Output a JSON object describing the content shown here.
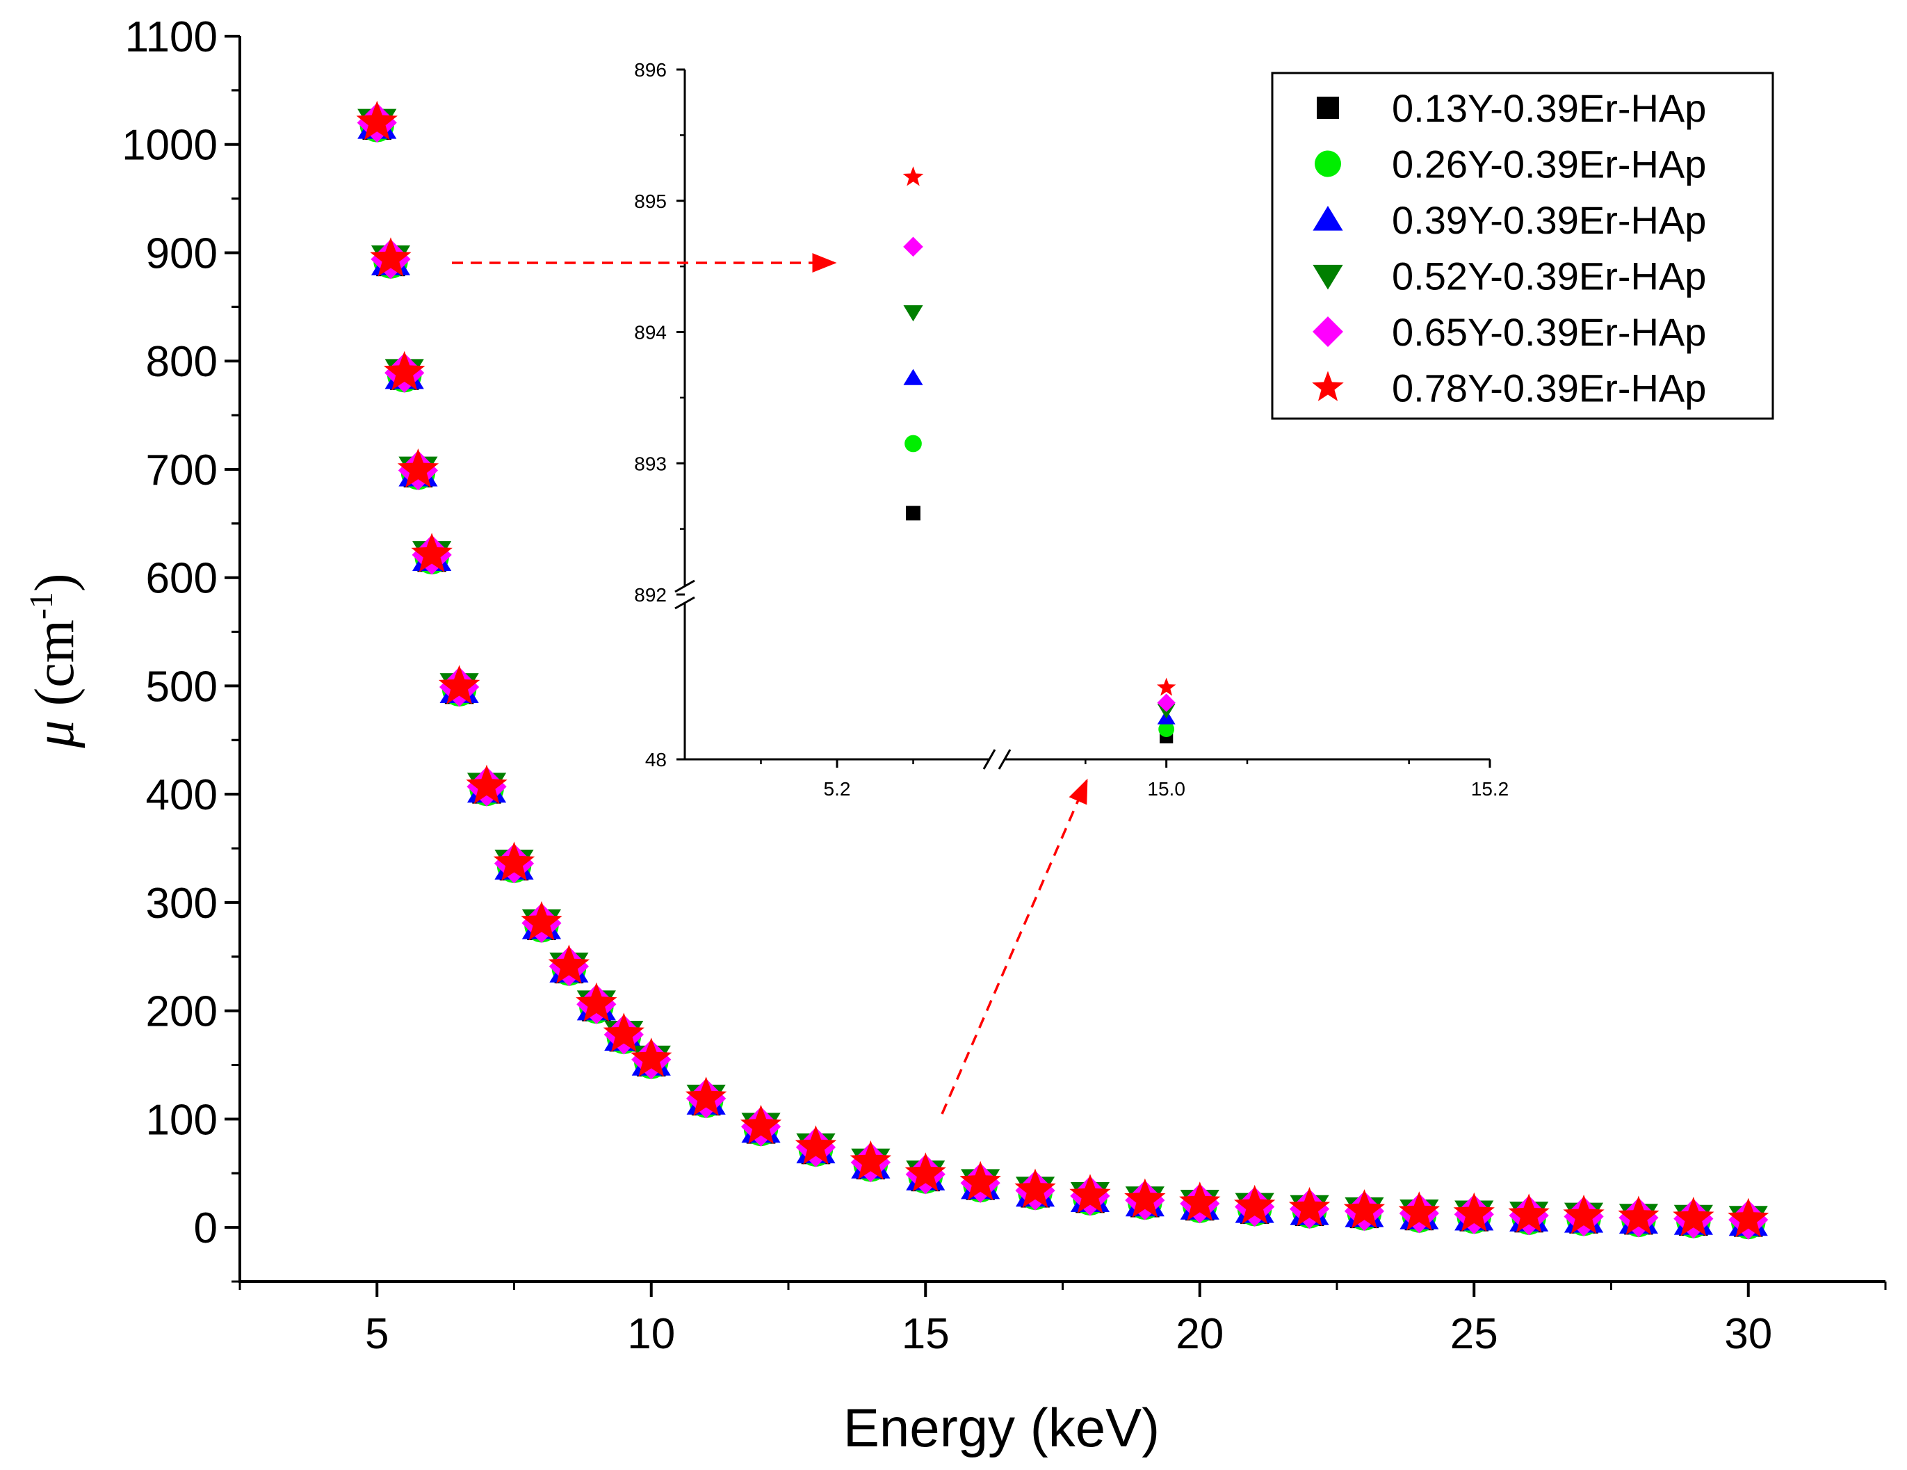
{
  "chart_data": {
    "type": "scatter",
    "xlabel": "Energy (keV)",
    "ylabel": {
      "symbol": "μ",
      "unit_open": " (cm",
      "unit_sup": "-1",
      "unit_close": ")"
    },
    "xlim": [
      2.5,
      32.5
    ],
    "ylim": [
      -50,
      1100
    ],
    "xticks": [
      5,
      10,
      15,
      20,
      25,
      30
    ],
    "xtick_labels": [
      "5",
      "10",
      "15",
      "20",
      "25",
      "30"
    ],
    "yticks": [
      0,
      100,
      200,
      300,
      400,
      500,
      600,
      700,
      800,
      900,
      1000,
      1100
    ],
    "ytick_labels": [
      "0",
      "100",
      "200",
      "300",
      "400",
      "500",
      "600",
      "700",
      "800",
      "900",
      "1000",
      "1100"
    ],
    "energies": [
      5,
      5.25,
      5.5,
      5.75,
      6,
      6.5,
      7,
      7.5,
      8,
      8.5,
      9,
      9.5,
      10,
      11,
      12,
      13,
      14,
      15,
      16,
      17,
      18,
      19,
      20,
      21,
      22,
      23,
      24,
      25,
      26,
      27,
      28,
      29,
      30
    ],
    "mu_values": [
      1019,
      893,
      788,
      698,
      620,
      498,
      406,
      335,
      280,
      240,
      205,
      177,
      154,
      118,
      92,
      73,
      59,
      48,
      40,
      33,
      28,
      24,
      21,
      18,
      16,
      14,
      12,
      11,
      10,
      9,
      8,
      7,
      6
    ],
    "series": [
      {
        "name": "0.13Y-0.39Er-HAp",
        "marker": "square",
        "color": "#000000",
        "inset_values": [
          892.62,
          48.3
        ]
      },
      {
        "name": "0.26Y-0.39Er-HAp",
        "marker": "circle",
        "color": "#00ee00",
        "inset_values": [
          893.15,
          48.4
        ]
      },
      {
        "name": "0.39Y-0.39Er-HAp",
        "marker": "triangle-up",
        "color": "#0000ff",
        "inset_values": [
          893.65,
          48.55
        ]
      },
      {
        "name": "0.52Y-0.39Er-HAp",
        "marker": "triangle-down",
        "color": "#007f00",
        "inset_values": [
          894.15,
          48.65
        ]
      },
      {
        "name": "0.65Y-0.39Er-HAp",
        "marker": "diamond",
        "color": "#ff00ff",
        "inset_values": [
          894.65,
          48.75
        ]
      },
      {
        "name": "0.78Y-0.39Er-HAp",
        "marker": "star",
        "color": "#ff0000",
        "inset_values": [
          895.18,
          48.95
        ]
      }
    ],
    "inset": {
      "upper_ylim": [
        892,
        896
      ],
      "upper_yticks": [
        892,
        893,
        894,
        895,
        896
      ],
      "upper_ytick_labels": [
        "892",
        "893",
        "894",
        "895",
        "896"
      ],
      "lower_ylim": [
        48,
        50
      ],
      "lower_ytick_labels": [
        "48"
      ],
      "x_left_segment": [
        5.1,
        5.3
      ],
      "x_right_segment": [
        14.9,
        15.2
      ],
      "xtick_labels": [
        "5.2",
        "15.0",
        "15.2"
      ],
      "point_x": [
        5.25,
        15.0
      ]
    },
    "legend_position": "top-right"
  }
}
